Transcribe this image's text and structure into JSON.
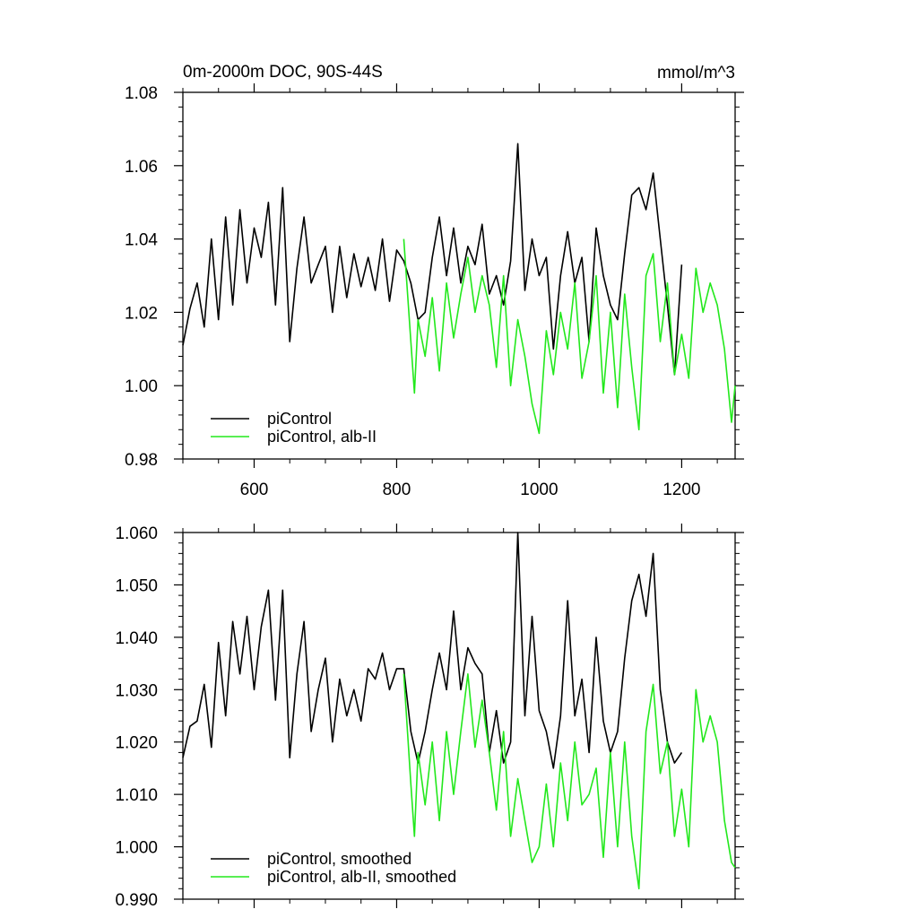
{
  "figure": {
    "title": "0m-2000m DOC, 90S-44S",
    "units": "mmol/m^3"
  },
  "colors": {
    "control": "#000000",
    "alb": "#22e81c"
  },
  "chart_data": [
    {
      "type": "line",
      "title": "0m-2000m DOC, 90S-44S",
      "units_label": "mmol/m^3",
      "xlabel": "",
      "ylabel": "",
      "xlim": [
        500,
        1275
      ],
      "ylim": [
        0.98,
        1.08
      ],
      "xticks": [
        600,
        800,
        1000,
        1200
      ],
      "xtick_labels": [
        "600",
        "800",
        "1000",
        "1200"
      ],
      "yticks": [
        0.98,
        1.0,
        1.02,
        1.04,
        1.06,
        1.08
      ],
      "ytick_labels": [
        "0.98",
        "1.00",
        "1.02",
        "1.04",
        "1.06",
        "1.08"
      ],
      "legend_position": "bottom-left",
      "series": [
        {
          "name": "piControl",
          "color": "#000000",
          "x": [
            500,
            510,
            520,
            530,
            540,
            550,
            560,
            570,
            580,
            590,
            600,
            610,
            620,
            630,
            640,
            650,
            660,
            670,
            680,
            690,
            700,
            710,
            720,
            730,
            740,
            750,
            760,
            770,
            780,
            790,
            800,
            810,
            820,
            830,
            840,
            850,
            860,
            870,
            880,
            890,
            900,
            910,
            920,
            930,
            940,
            950,
            960,
            970,
            980,
            990,
            1000,
            1010,
            1020,
            1030,
            1040,
            1050,
            1060,
            1070,
            1080,
            1090,
            1100,
            1110,
            1120,
            1130,
            1140,
            1150,
            1160,
            1170,
            1180,
            1190,
            1200
          ],
          "y": [
            1.011,
            1.021,
            1.028,
            1.016,
            1.04,
            1.018,
            1.046,
            1.022,
            1.048,
            1.028,
            1.043,
            1.035,
            1.05,
            1.022,
            1.054,
            1.012,
            1.032,
            1.046,
            1.028,
            1.033,
            1.038,
            1.02,
            1.038,
            1.024,
            1.036,
            1.027,
            1.035,
            1.026,
            1.04,
            1.023,
            1.037,
            1.034,
            1.028,
            1.018,
            1.02,
            1.035,
            1.046,
            1.03,
            1.043,
            1.028,
            1.038,
            1.033,
            1.044,
            1.025,
            1.03,
            1.022,
            1.034,
            1.066,
            1.026,
            1.04,
            1.03,
            1.035,
            1.01,
            1.03,
            1.042,
            1.028,
            1.035,
            1.012,
            1.043,
            1.03,
            1.022,
            1.018,
            1.036,
            1.052,
            1.054,
            1.048,
            1.058,
            1.04,
            1.022,
            1.003,
            1.033
          ]
        },
        {
          "name": "piControl, alb-II",
          "color": "#22e81c",
          "x": [
            810,
            820,
            825,
            830,
            840,
            850,
            860,
            870,
            880,
            890,
            900,
            910,
            920,
            930,
            940,
            950,
            960,
            970,
            980,
            990,
            1000,
            1010,
            1020,
            1030,
            1040,
            1050,
            1060,
            1070,
            1080,
            1090,
            1100,
            1110,
            1120,
            1130,
            1140,
            1150,
            1160,
            1170,
            1180,
            1190,
            1200,
            1210,
            1220,
            1230,
            1240,
            1250,
            1260,
            1270,
            1275
          ],
          "y": [
            1.04,
            1.012,
            0.998,
            1.018,
            1.008,
            1.024,
            1.004,
            1.028,
            1.013,
            1.025,
            1.035,
            1.02,
            1.03,
            1.022,
            1.005,
            1.03,
            1.0,
            1.018,
            1.008,
            0.995,
            0.987,
            1.015,
            1.003,
            1.02,
            1.01,
            1.028,
            1.002,
            1.012,
            1.03,
            0.998,
            1.02,
            0.994,
            1.025,
            1.005,
            0.988,
            1.03,
            1.036,
            1.012,
            1.028,
            1.003,
            1.014,
            1.002,
            1.032,
            1.02,
            1.028,
            1.022,
            1.01,
            0.99,
            1.0
          ]
        }
      ]
    },
    {
      "type": "line",
      "title": "",
      "xlabel": "",
      "ylabel": "",
      "xlim": [
        500,
        1275
      ],
      "ylim": [
        0.99,
        1.06
      ],
      "xticks": [
        600,
        800,
        1000,
        1200
      ],
      "xtick_labels": [],
      "yticks": [
        0.99,
        1.0,
        1.01,
        1.02,
        1.03,
        1.04,
        1.05,
        1.06
      ],
      "ytick_labels": [
        "0.990",
        "1.000",
        "1.010",
        "1.020",
        "1.030",
        "1.040",
        "1.050",
        "1.060"
      ],
      "legend_position": "bottom-left",
      "series": [
        {
          "name": "piControl, smoothed",
          "color": "#000000",
          "x": [
            500,
            510,
            520,
            530,
            540,
            550,
            560,
            570,
            580,
            590,
            600,
            610,
            620,
            630,
            640,
            650,
            660,
            670,
            680,
            690,
            700,
            710,
            720,
            730,
            740,
            750,
            760,
            770,
            780,
            790,
            800,
            810,
            820,
            830,
            840,
            850,
            860,
            870,
            880,
            890,
            900,
            910,
            920,
            930,
            940,
            950,
            960,
            970,
            980,
            990,
            1000,
            1010,
            1020,
            1030,
            1040,
            1050,
            1060,
            1070,
            1080,
            1090,
            1100,
            1110,
            1120,
            1130,
            1140,
            1150,
            1160,
            1170,
            1180,
            1190,
            1200
          ],
          "y": [
            1.017,
            1.023,
            1.024,
            1.031,
            1.019,
            1.039,
            1.025,
            1.043,
            1.033,
            1.044,
            1.03,
            1.042,
            1.049,
            1.028,
            1.049,
            1.017,
            1.033,
            1.043,
            1.022,
            1.03,
            1.036,
            1.02,
            1.032,
            1.025,
            1.03,
            1.024,
            1.034,
            1.032,
            1.037,
            1.03,
            1.034,
            1.034,
            1.022,
            1.016,
            1.022,
            1.03,
            1.037,
            1.03,
            1.045,
            1.03,
            1.038,
            1.035,
            1.033,
            1.018,
            1.026,
            1.016,
            1.02,
            1.06,
            1.025,
            1.044,
            1.026,
            1.022,
            1.015,
            1.025,
            1.047,
            1.025,
            1.032,
            1.018,
            1.04,
            1.024,
            1.018,
            1.022,
            1.036,
            1.047,
            1.052,
            1.044,
            1.056,
            1.03,
            1.02,
            1.016,
            1.018
          ]
        },
        {
          "name": "piControl, alb-II, smoothed",
          "color": "#22e81c",
          "x": [
            810,
            820,
            825,
            830,
            840,
            850,
            860,
            870,
            880,
            890,
            900,
            910,
            920,
            930,
            940,
            950,
            960,
            970,
            980,
            990,
            1000,
            1010,
            1020,
            1030,
            1040,
            1050,
            1060,
            1070,
            1080,
            1090,
            1100,
            1110,
            1120,
            1130,
            1140,
            1150,
            1160,
            1170,
            1180,
            1190,
            1200,
            1210,
            1220,
            1230,
            1240,
            1250,
            1260,
            1270,
            1275
          ],
          "y": [
            1.033,
            1.012,
            1.002,
            1.018,
            1.008,
            1.02,
            1.005,
            1.022,
            1.01,
            1.022,
            1.033,
            1.019,
            1.028,
            1.018,
            1.007,
            1.022,
            1.002,
            1.013,
            1.005,
            0.997,
            1.0,
            1.012,
            1.0,
            1.016,
            1.005,
            1.02,
            1.008,
            1.01,
            1.015,
            0.998,
            1.018,
            1.0,
            1.02,
            1.002,
            0.992,
            1.022,
            1.031,
            1.014,
            1.02,
            1.002,
            1.011,
            1.0,
            1.03,
            1.02,
            1.025,
            1.02,
            1.005,
            0.997,
            0.996
          ]
        }
      ]
    }
  ]
}
